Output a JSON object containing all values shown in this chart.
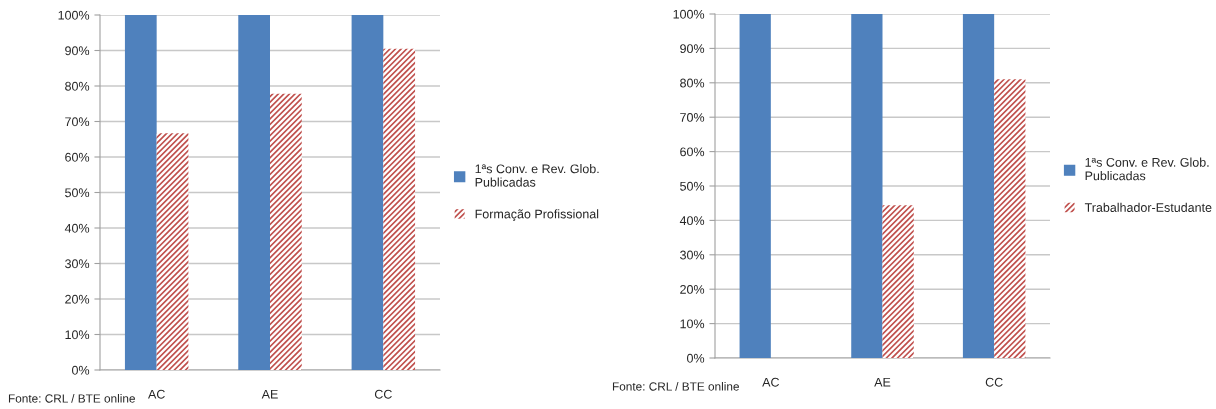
{
  "chart_data": [
    {
      "type": "bar",
      "categories": [
        "AC",
        "AE",
        "CC"
      ],
      "series": [
        {
          "name": "1ªs Conv. e Rev. Glob. Publicadas",
          "color": "#4f81bd",
          "values": [
            100,
            100,
            100
          ]
        },
        {
          "name": "Formação Profissional",
          "color": "#c0504d",
          "values": [
            66.7,
            77.8,
            90.5
          ]
        }
      ],
      "ylim": [
        0,
        100
      ],
      "yticks": [
        {
          "value": 0,
          "label": "0%"
        },
        {
          "value": 10,
          "label": "10%"
        },
        {
          "value": 20,
          "label": "20%"
        },
        {
          "value": 30,
          "label": "30%"
        },
        {
          "value": 40,
          "label": "40%"
        },
        {
          "value": 50,
          "label": "50%"
        },
        {
          "value": 60,
          "label": "60%"
        },
        {
          "value": 70,
          "label": "70%"
        },
        {
          "value": 80,
          "label": "80%"
        },
        {
          "value": 90,
          "label": "90%"
        },
        {
          "value": 100,
          "label": "100%"
        }
      ],
      "grid": "y",
      "legend": "right",
      "annotations": [
        "Fonte: CRL / BTE online"
      ]
    },
    {
      "type": "bar",
      "categories": [
        "AC",
        "AE",
        "CC"
      ],
      "series": [
        {
          "name": "1ªs Conv. e Rev. Glob. Publicadas",
          "color": "#4f81bd",
          "values": [
            100,
            100,
            100
          ]
        },
        {
          "name": "Trabalhador-Estudante",
          "color": "#c0504d",
          "values": [
            0,
            44.4,
            81
          ]
        }
      ],
      "ylim": [
        0,
        100
      ],
      "yticks": [
        {
          "value": 0,
          "label": "0%"
        },
        {
          "value": 10,
          "label": "10%"
        },
        {
          "value": 20,
          "label": "20%"
        },
        {
          "value": 30,
          "label": "30%"
        },
        {
          "value": 40,
          "label": "40%"
        },
        {
          "value": 50,
          "label": "50%"
        },
        {
          "value": 60,
          "label": "60%"
        },
        {
          "value": 70,
          "label": "70%"
        },
        {
          "value": 80,
          "label": "80%"
        },
        {
          "value": 90,
          "label": "90%"
        },
        {
          "value": 100,
          "label": "100%"
        }
      ],
      "grid": "y",
      "legend": "right",
      "annotations": [
        "Fonte: CRL / BTE online"
      ]
    }
  ]
}
